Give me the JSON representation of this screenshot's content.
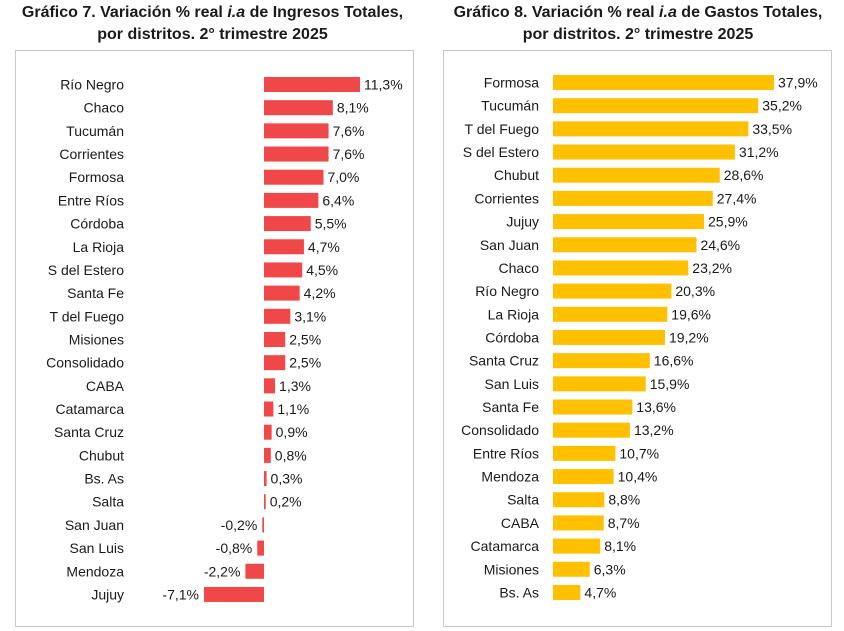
{
  "charts": [
    {
      "title_parts": [
        "Gráfico 7. Variación % real ",
        "i.a",
        " de Ingresos Totales,"
      ],
      "title_line2": "por distritos. 2° trimestre 2025"
    },
    {
      "title_parts": [
        "Gráfico 8. Variación % real ",
        "i.a",
        " de Gastos Totales,"
      ],
      "title_line2": "por distritos. 2° trimestre 2025"
    }
  ],
  "chart_data": [
    {
      "type": "bar",
      "orientation": "horizontal",
      "title": "Gráfico 7. Variación % real i.a de Ingresos Totales, por distritos. 2° trimestre 2025",
      "color": "#f04848",
      "categories": [
        "Río Negro",
        "Chaco",
        "Tucumán",
        "Corrientes",
        "Formosa",
        "Entre Ríos",
        "Córdoba",
        "La Rioja",
        "S del Estero",
        "Santa Fe",
        "T del Fuego",
        "Misiones",
        "Consolidado",
        "CABA",
        "Catamarca",
        "Santa Cruz",
        "Chubut",
        "Bs. As",
        "Salta",
        "San Juan",
        "San Luis",
        "Mendoza",
        "Jujuy"
      ],
      "values": [
        11.3,
        8.1,
        7.6,
        7.6,
        7.0,
        6.4,
        5.5,
        4.7,
        4.5,
        4.2,
        3.1,
        2.5,
        2.5,
        1.3,
        1.1,
        0.9,
        0.8,
        0.3,
        0.2,
        -0.2,
        -0.8,
        -2.2,
        -7.1
      ],
      "labels": [
        "11,3%",
        "8,1%",
        "7,6%",
        "7,6%",
        "7,0%",
        "6,4%",
        "5,5%",
        "4,7%",
        "4,5%",
        "4,2%",
        "3,1%",
        "2,5%",
        "2,5%",
        "1,3%",
        "1,1%",
        "0,9%",
        "0,8%",
        "0,3%",
        "0,2%",
        "-0,2%",
        "-0,8%",
        "-2,2%",
        "-7,1%"
      ],
      "xlim": [
        -7.1,
        11.3
      ]
    },
    {
      "type": "bar",
      "orientation": "horizontal",
      "title": "Gráfico 8. Variación % real i.a de Gastos Totales, por distritos. 2° trimestre 2025",
      "color": "#ffc000",
      "categories": [
        "Formosa",
        "Tucumán",
        "T del Fuego",
        "S del Estero",
        "Chubut",
        "Corrientes",
        "Jujuy",
        "San Juan",
        "Chaco",
        "Río Negro",
        "La Rioja",
        "Córdoba",
        "Santa Cruz",
        "San Luis",
        "Santa Fe",
        "Consolidado",
        "Entre Ríos",
        "Mendoza",
        "Salta",
        "CABA",
        "Catamarca",
        "Misiones",
        "Bs. As"
      ],
      "values": [
        37.9,
        35.2,
        33.5,
        31.2,
        28.6,
        27.4,
        25.9,
        24.6,
        23.2,
        20.3,
        19.6,
        19.2,
        16.6,
        15.9,
        13.6,
        13.2,
        10.7,
        10.4,
        8.8,
        8.7,
        8.1,
        6.3,
        4.7
      ],
      "labels": [
        "37,9%",
        "35,2%",
        "33,5%",
        "31,2%",
        "28,6%",
        "27,4%",
        "25,9%",
        "24,6%",
        "23,2%",
        "20,3%",
        "19,6%",
        "19,2%",
        "16,6%",
        "15,9%",
        "13,6%",
        "13,2%",
        "10,7%",
        "10,4%",
        "8,8%",
        "8,7%",
        "8,1%",
        "6,3%",
        "4,7%"
      ],
      "xlim": [
        0,
        37.9
      ]
    }
  ]
}
